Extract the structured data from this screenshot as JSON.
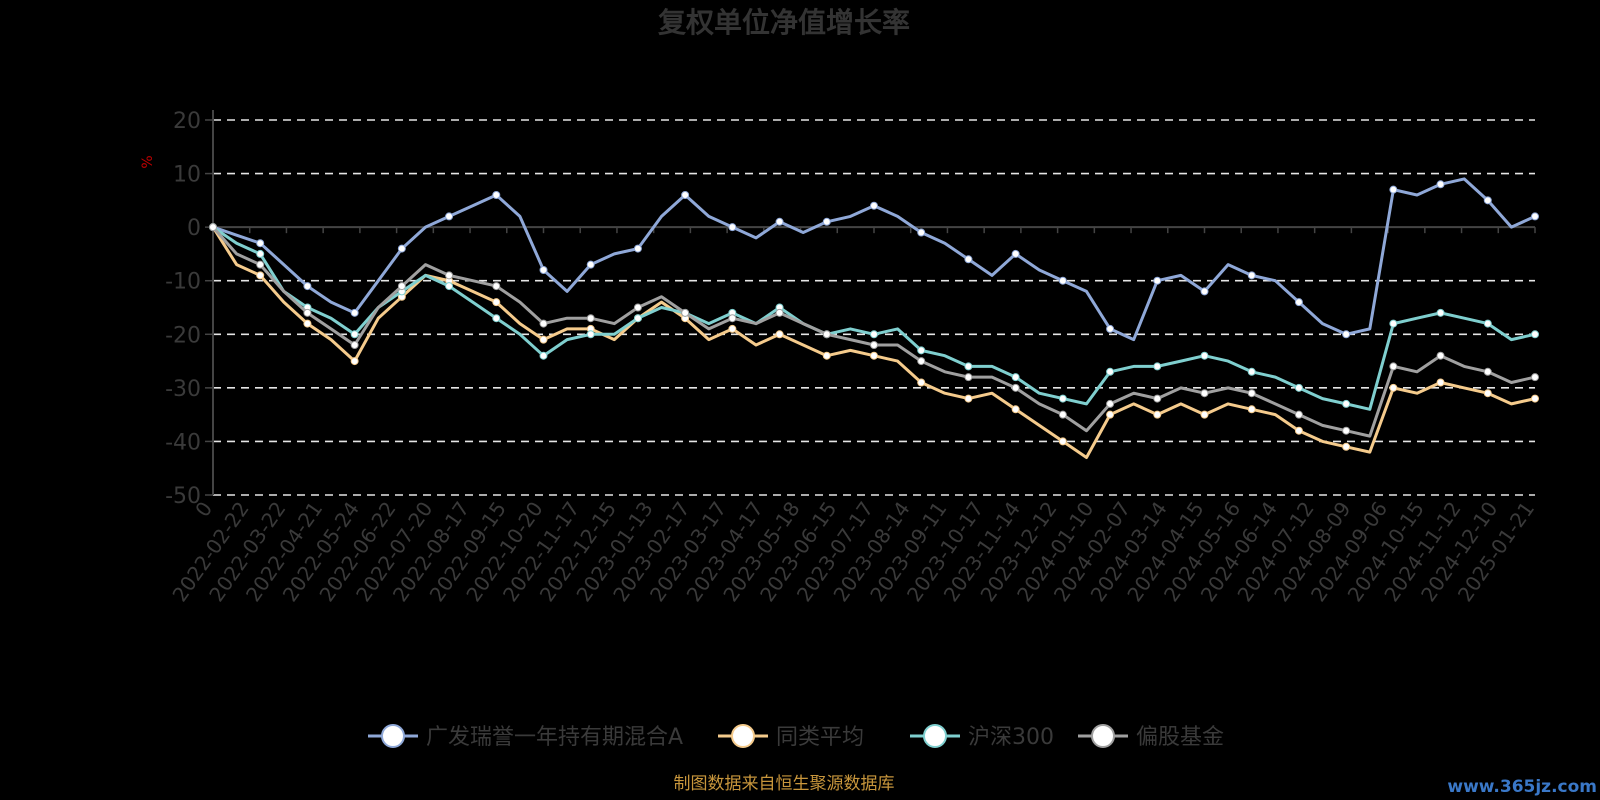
{
  "colors": {
    "background": "#000000",
    "axis_text": "#3a3a3a",
    "grid": "#e6e6e6",
    "axis_line": "#444444",
    "unit": "#c00000",
    "footer": "#c8963c",
    "watermark": "#3a78c8"
  },
  "chart_data": {
    "type": "line",
    "title": "复权单位净值增长率",
    "ylabel": "%",
    "ylim": [
      -50,
      20
    ],
    "yticks": [
      20,
      10,
      0,
      -10,
      -20,
      -30,
      -40,
      -50
    ],
    "grid": true,
    "legend_position": "bottom",
    "x_tick_labels": [
      "0",
      "2022-02-22",
      "2022-03-22",
      "2022-04-21",
      "2022-05-24",
      "2022-06-22",
      "2022-07-20",
      "2022-08-17",
      "2022-09-15",
      "2022-10-20",
      "2022-11-17",
      "2022-12-15",
      "2023-01-13",
      "2023-02-17",
      "2023-03-17",
      "2023-04-17",
      "2023-05-18",
      "2023-06-15",
      "2023-07-17",
      "2023-08-14",
      "2023-09-11",
      "2023-10-17",
      "2023-11-14",
      "2023-12-12",
      "2024-01-10",
      "2024-02-07",
      "2024-03-14",
      "2024-04-15",
      "2024-05-16",
      "2024-06-14",
      "2024-07-12",
      "2024-08-09",
      "2024-09-06",
      "2024-10-15",
      "2024-11-12",
      "2024-12-10",
      "2025-01-21"
    ],
    "series": [
      {
        "name": "广发瑞誉一年持有期混合A",
        "color": "#8fa8d8",
        "values": [
          0,
          -1.5,
          -3,
          -7,
          -11,
          -14,
          -16,
          -10,
          -4,
          0,
          2,
          4,
          6,
          2,
          -8,
          -12,
          -7,
          -5,
          -4,
          2,
          6,
          2,
          0,
          -2,
          1,
          -1,
          1,
          2,
          4,
          2,
          -1,
          -3,
          -6,
          -9,
          -5,
          -8,
          -10,
          -12,
          -19,
          -21,
          -10,
          -9,
          -12,
          -7,
          -9,
          -10,
          -14,
          -18,
          -20,
          -19,
          7,
          6,
          8,
          9,
          5,
          0,
          2
        ]
      },
      {
        "name": "同类平均",
        "color": "#f5cb8c",
        "values": [
          0,
          -7,
          -9,
          -14,
          -18,
          -21,
          -25,
          -17,
          -13,
          -9,
          -10,
          -12,
          -14,
          -18,
          -21,
          -19,
          -19,
          -21,
          -17,
          -14,
          -17,
          -21,
          -19,
          -22,
          -20,
          -22,
          -24,
          -23,
          -24,
          -25,
          -29,
          -31,
          -32,
          -31,
          -34,
          -37,
          -40,
          -43,
          -35,
          -33,
          -35,
          -33,
          -35,
          -33,
          -34,
          -35,
          -38,
          -40,
          -41,
          -42,
          -30,
          -31,
          -29,
          -30,
          -31,
          -33,
          -32
        ]
      },
      {
        "name": "沪深300",
        "color": "#7fcfcf",
        "values": [
          0,
          -3,
          -5,
          -12,
          -15,
          -17,
          -20,
          -15,
          -12,
          -9,
          -11,
          -14,
          -17,
          -20,
          -24,
          -21,
          -20,
          -20,
          -17,
          -15,
          -16,
          -18,
          -16,
          -18,
          -15,
          -18,
          -20,
          -19,
          -20,
          -19,
          -23,
          -24,
          -26,
          -26,
          -28,
          -31,
          -32,
          -33,
          -27,
          -26,
          -26,
          -25,
          -24,
          -25,
          -27,
          -28,
          -30,
          -32,
          -33,
          -34,
          -18,
          -17,
          -16,
          -17,
          -18,
          -21,
          -20
        ]
      },
      {
        "name": "偏股基金",
        "color": "#a0a0a0",
        "values": [
          0,
          -5,
          -7,
          -12,
          -16,
          -19,
          -22,
          -15,
          -11,
          -7,
          -9,
          -10,
          -11,
          -14,
          -18,
          -17,
          -17,
          -18,
          -15,
          -13,
          -16,
          -19,
          -17,
          -18,
          -16,
          -18,
          -20,
          -21,
          -22,
          -22,
          -25,
          -27,
          -28,
          -28,
          -30,
          -33,
          -35,
          -38,
          -33,
          -31,
          -32,
          -30,
          -31,
          -30,
          -31,
          -33,
          -35,
          -37,
          -38,
          -39,
          -26,
          -27,
          -24,
          -26,
          -27,
          -29,
          -28
        ]
      }
    ]
  },
  "footer": {
    "source": "制图数据来自恒生聚源数据库"
  },
  "watermark": {
    "text": "www.365jz.com"
  }
}
